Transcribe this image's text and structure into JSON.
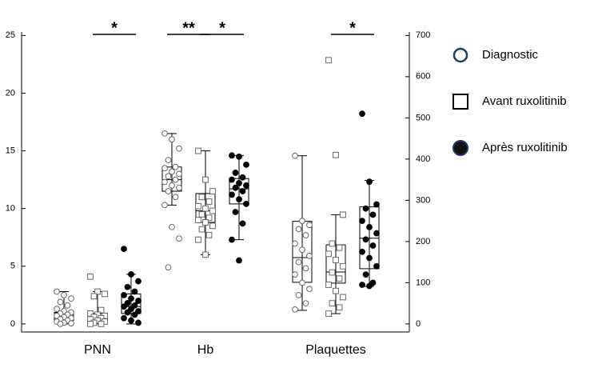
{
  "chart_data": {
    "type": "box",
    "categories": [
      "PNN",
      "Hb",
      "Plaquettes"
    ],
    "category_axis": [
      "y",
      "y",
      "y2"
    ],
    "ylim": [
      -0.7,
      25.3
    ],
    "yticks": [
      0,
      5,
      10,
      15,
      20,
      25
    ],
    "y2lim": [
      -19.6,
      708.4
    ],
    "y2ticks": [
      0,
      100,
      200,
      300,
      400,
      500,
      600,
      700
    ],
    "series": [
      {
        "name": "Diagnostic",
        "marker": "circle-open",
        "color": "#1f3a5f",
        "boxes": [
          {
            "min": 0,
            "q1": 0.3,
            "median": 0.6,
            "q3": 1.0,
            "max": 2.8,
            "points": [
              2.8,
              2.5,
              2.2,
              1.9,
              1.6,
              1.3,
              1.1,
              1.0,
              0.9,
              0.8,
              0.7,
              0.6,
              0.5,
              0.4,
              0.3,
              0.2,
              0.1,
              0.05,
              0
            ]
          },
          {
            "min": 10.3,
            "q1": 11.5,
            "median": 12.5,
            "q3": 13.6,
            "max": 16.5,
            "points": [
              16.5,
              16.0,
              15.2,
              14.2,
              13.6,
              13.5,
              13.2,
              13.0,
              12.8,
              12.5,
              12.3,
              12.0,
              11.8,
              11.5,
              11.0,
              10.3,
              8.4,
              7.4,
              4.9
            ]
          },
          {
            "min": 33,
            "q1": 101,
            "median": 161,
            "q3": 249,
            "max": 408,
            "points": [
              408,
              250,
              240,
              230,
              215,
              195,
              180,
              165,
              150,
              135,
              120,
              100,
              85,
              70,
              50,
              35
            ]
          }
        ]
      },
      {
        "name": "Avant ruxolitinib",
        "marker": "square-open",
        "color": "#000000",
        "boxes": [
          {
            "min": 0,
            "q1": 0.2,
            "median": 0.5,
            "q3": 0.9,
            "max": 2.8,
            "points": [
              4.1,
              2.8,
              2.6,
              2.4,
              1.2,
              0.9,
              0.8,
              0.7,
              0.6,
              0.5,
              0.4,
              0.3,
              0.2,
              0.1,
              0,
              0
            ]
          },
          {
            "min": 6.0,
            "q1": 8.8,
            "median": 9.8,
            "q3": 11.3,
            "max": 15.0,
            "points": [
              15.0,
              12.5,
              11.5,
              11.0,
              10.6,
              10.2,
              10.0,
              9.8,
              9.5,
              9.2,
              9.0,
              8.8,
              8.5,
              8.2,
              7.7,
              7.3,
              6.0
            ]
          },
          {
            "min": 25,
            "q1": 99,
            "median": 126,
            "q3": 192,
            "max": 265,
            "points": [
              640,
              410,
              265,
              195,
              185,
              170,
              155,
              140,
              125,
              110,
              95,
              80,
              65,
              50,
              40,
              25
            ]
          }
        ]
      },
      {
        "name": "Après ruxolitinib",
        "marker": "circle-filled",
        "color": "#000000",
        "boxes": [
          {
            "min": 0,
            "q1": 0.9,
            "median": 1.5,
            "q3": 2.6,
            "max": 4.3,
            "points": [
              6.5,
              4.3,
              3.7,
              3.2,
              2.8,
              2.5,
              2.2,
              2.0,
              1.8,
              1.6,
              1.5,
              1.3,
              1.1,
              1.0,
              0.8,
              0.5,
              0.3,
              0.1
            ]
          },
          {
            "min": 7.3,
            "q1": 10.4,
            "median": 11.7,
            "q3": 12.6,
            "max": 14.6,
            "points": [
              14.6,
              14.5,
              13.8,
              13.1,
              12.7,
              12.5,
              12.2,
              12.0,
              11.8,
              11.5,
              11.2,
              10.8,
              10.4,
              9.7,
              8.7,
              7.3,
              5.5
            ]
          },
          {
            "min": 91,
            "q1": 134,
            "median": 208,
            "q3": 284,
            "max": 348,
            "points": [
              510,
              345,
              290,
              280,
              265,
              250,
              235,
              220,
              205,
              190,
              175,
              160,
              140,
              120,
              100,
              95,
              92
            ]
          }
        ]
      }
    ],
    "annotations": [
      {
        "text": "*",
        "category": 0,
        "series_pair": [
          1,
          2
        ]
      },
      {
        "text": "**",
        "category": 1,
        "series_pair": [
          0,
          1
        ]
      },
      {
        "text": "*",
        "category": 1,
        "series_pair": [
          1,
          2
        ]
      },
      {
        "text": "*",
        "category": 2,
        "series_pair": [
          1,
          2
        ]
      }
    ]
  }
}
